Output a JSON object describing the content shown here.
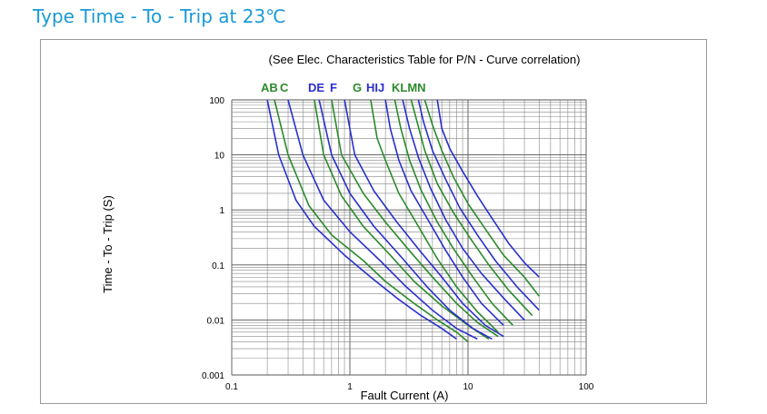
{
  "title": "Type Time - To - Trip at 23℃",
  "chart_data": {
    "type": "line",
    "annotation": "(See Elec. Characteristics Table for P/N - Curve correlation)",
    "xlabel": "Fault Current (A)",
    "ylabel": "Time - To - Trip (S)",
    "xscale": "log",
    "yscale": "log",
    "xlim": [
      0.1,
      100
    ],
    "ylim": [
      0.001,
      100
    ],
    "x_tick_labels": [
      "0.1",
      "1",
      "10",
      "100"
    ],
    "y_tick_labels": [
      "100",
      "10",
      "1",
      "0.1",
      "0.01",
      "0.001"
    ],
    "grid": true,
    "curve_labels": [
      {
        "text": "AB",
        "color": "#2a8a2a"
      },
      {
        "text": "C",
        "color": "#2a8a2a"
      },
      {
        "text": "DE",
        "color": "#2a2fcc"
      },
      {
        "text": "F",
        "color": "#2a2fcc"
      },
      {
        "text": "G",
        "color": "#2a8a2a"
      },
      {
        "text": "HIJ",
        "color": "#2a2fcc"
      },
      {
        "text": "KLMN",
        "color": "#2a8a2a"
      }
    ],
    "series": [
      {
        "color": "#2a2fcc",
        "points": [
          [
            0.2,
            100
          ],
          [
            0.25,
            10
          ],
          [
            0.35,
            1.5
          ],
          [
            0.5,
            0.5
          ],
          [
            0.9,
            0.15
          ],
          [
            1.5,
            0.06
          ],
          [
            2.5,
            0.025
          ],
          [
            4,
            0.012
          ],
          [
            6,
            0.007
          ],
          [
            8,
            0.0045
          ]
        ]
      },
      {
        "color": "#2a8a2a",
        "points": [
          [
            0.23,
            100
          ],
          [
            0.3,
            10
          ],
          [
            0.45,
            1.2
          ],
          [
            0.7,
            0.35
          ],
          [
            1.3,
            0.12
          ],
          [
            2,
            0.05
          ],
          [
            3.5,
            0.02
          ],
          [
            5.5,
            0.01
          ],
          [
            8,
            0.006
          ],
          [
            10,
            0.004
          ]
        ]
      },
      {
        "color": "#2a2fcc",
        "points": [
          [
            0.3,
            100
          ],
          [
            0.4,
            10
          ],
          [
            0.6,
            1.5
          ],
          [
            1,
            0.4
          ],
          [
            1.8,
            0.12
          ],
          [
            3,
            0.04
          ],
          [
            5,
            0.015
          ],
          [
            8,
            0.007
          ],
          [
            12,
            0.0045
          ]
        ]
      },
      {
        "color": "#2a8a2a",
        "points": [
          [
            0.5,
            100
          ],
          [
            0.6,
            10
          ],
          [
            0.85,
            1.8
          ],
          [
            1.3,
            0.5
          ],
          [
            2.2,
            0.15
          ],
          [
            3.5,
            0.05
          ],
          [
            6,
            0.018
          ],
          [
            10,
            0.008
          ],
          [
            15,
            0.0045
          ]
        ]
      },
      {
        "color": "#2a2fcc",
        "points": [
          [
            0.55,
            100
          ],
          [
            0.7,
            10
          ],
          [
            1,
            2
          ],
          [
            1.6,
            0.5
          ],
          [
            2.8,
            0.13
          ],
          [
            4.5,
            0.04
          ],
          [
            7,
            0.015
          ],
          [
            11,
            0.007
          ],
          [
            16,
            0.0045
          ]
        ]
      },
      {
        "color": "#2a8a2a",
        "points": [
          [
            0.7,
            100
          ],
          [
            0.85,
            10
          ],
          [
            1.3,
            2
          ],
          [
            2,
            0.6
          ],
          [
            3.2,
            0.18
          ],
          [
            5,
            0.06
          ],
          [
            8,
            0.02
          ],
          [
            12,
            0.009
          ],
          [
            18,
            0.005
          ]
        ]
      },
      {
        "color": "#2a2fcc",
        "points": [
          [
            0.9,
            100
          ],
          [
            1.1,
            10
          ],
          [
            1.6,
            2.2
          ],
          [
            2.5,
            0.6
          ],
          [
            4,
            0.17
          ],
          [
            6,
            0.06
          ],
          [
            9,
            0.02
          ],
          [
            14,
            0.008
          ],
          [
            20,
            0.005
          ]
        ]
      },
      {
        "color": "#2a8a2a",
        "points": [
          [
            1.5,
            100
          ],
          [
            1.7,
            20
          ],
          [
            2,
            8
          ],
          [
            2.6,
            2
          ],
          [
            3.8,
            0.5
          ],
          [
            5.5,
            0.13
          ],
          [
            8,
            0.04
          ],
          [
            12,
            0.014
          ],
          [
            18,
            0.006
          ]
        ]
      },
      {
        "color": "#2a2fcc",
        "points": [
          [
            2,
            100
          ],
          [
            2.2,
            30
          ],
          [
            2.6,
            8
          ],
          [
            3.3,
            2.2
          ],
          [
            4.7,
            0.6
          ],
          [
            6.5,
            0.18
          ],
          [
            9,
            0.06
          ],
          [
            13,
            0.02
          ],
          [
            20,
            0.008
          ]
        ]
      },
      {
        "color": "#2a8a2a",
        "points": [
          [
            2.4,
            100
          ],
          [
            2.7,
            30
          ],
          [
            3.2,
            8
          ],
          [
            4,
            2.3
          ],
          [
            5.5,
            0.6
          ],
          [
            7.5,
            0.2
          ],
          [
            11,
            0.06
          ],
          [
            16,
            0.02
          ],
          [
            24,
            0.008
          ]
        ]
      },
      {
        "color": "#2a2fcc",
        "points": [
          [
            2.8,
            100
          ],
          [
            3.2,
            30
          ],
          [
            3.8,
            9
          ],
          [
            4.8,
            2.5
          ],
          [
            6.5,
            0.65
          ],
          [
            9,
            0.2
          ],
          [
            13,
            0.07
          ],
          [
            20,
            0.025
          ],
          [
            30,
            0.01
          ]
        ]
      },
      {
        "color": "#2a8a2a",
        "points": [
          [
            3.3,
            100
          ],
          [
            3.7,
            40
          ],
          [
            4.3,
            12
          ],
          [
            5.5,
            3
          ],
          [
            7.5,
            0.9
          ],
          [
            10.5,
            0.3
          ],
          [
            15,
            0.1
          ],
          [
            22,
            0.035
          ],
          [
            35,
            0.012
          ]
        ]
      },
      {
        "color": "#2a2fcc",
        "points": [
          [
            3.8,
            100
          ],
          [
            4.2,
            40
          ],
          [
            5,
            12
          ],
          [
            6.5,
            3.5
          ],
          [
            8.5,
            1.1
          ],
          [
            12,
            0.35
          ],
          [
            17,
            0.12
          ],
          [
            26,
            0.04
          ],
          [
            40,
            0.015
          ]
        ]
      },
      {
        "color": "#2a8a2a",
        "points": [
          [
            4.3,
            100
          ],
          [
            5,
            35
          ],
          [
            6,
            12
          ],
          [
            7.5,
            4
          ],
          [
            10,
            1.3
          ],
          [
            14,
            0.45
          ],
          [
            20,
            0.15
          ],
          [
            30,
            0.06
          ],
          [
            40,
            0.027
          ]
        ]
      },
      {
        "color": "#2a2fcc",
        "points": [
          [
            5.5,
            100
          ],
          [
            6,
            30
          ],
          [
            7,
            13
          ],
          [
            9,
            5
          ],
          [
            12,
            1.8
          ],
          [
            16,
            0.7
          ],
          [
            22,
            0.25
          ],
          [
            30,
            0.11
          ],
          [
            40,
            0.06
          ]
        ]
      }
    ]
  }
}
